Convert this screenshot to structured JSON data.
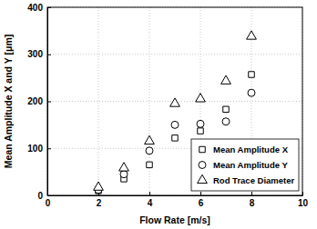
{
  "chart_data": {
    "type": "scatter",
    "x_label": "Flow Rate [m/s]",
    "y_label": "Mean Amplitude X and Y [μm]",
    "xlim": [
      0,
      10
    ],
    "xticks": [
      0,
      2,
      4,
      6,
      8,
      10
    ],
    "ylim": [
      0,
      400
    ],
    "yticks": [
      0,
      100,
      200,
      300,
      400
    ],
    "grid": true,
    "legend": "lower right",
    "series": [
      {
        "name": "Mean Amplitude X",
        "color": "#000000",
        "marker": "square",
        "x": [
          2,
          3,
          4,
          5,
          6,
          7,
          8
        ],
        "values": [
          10,
          35,
          65,
          122,
          137,
          183,
          257
        ]
      },
      {
        "name": "Mean Amplitude Y",
        "color": "#000000",
        "marker": "circle",
        "x": [
          2,
          3,
          4,
          5,
          6,
          7,
          8
        ],
        "values": [
          12,
          45,
          95,
          150,
          152,
          157,
          218
        ]
      },
      {
        "name": "Rod Trace Diameter",
        "color": "#000000",
        "marker": "triangle",
        "x": [
          2,
          3,
          4,
          5,
          6,
          7,
          8
        ],
        "values": [
          17,
          58,
          115,
          195,
          205,
          243,
          338
        ]
      }
    ]
  }
}
